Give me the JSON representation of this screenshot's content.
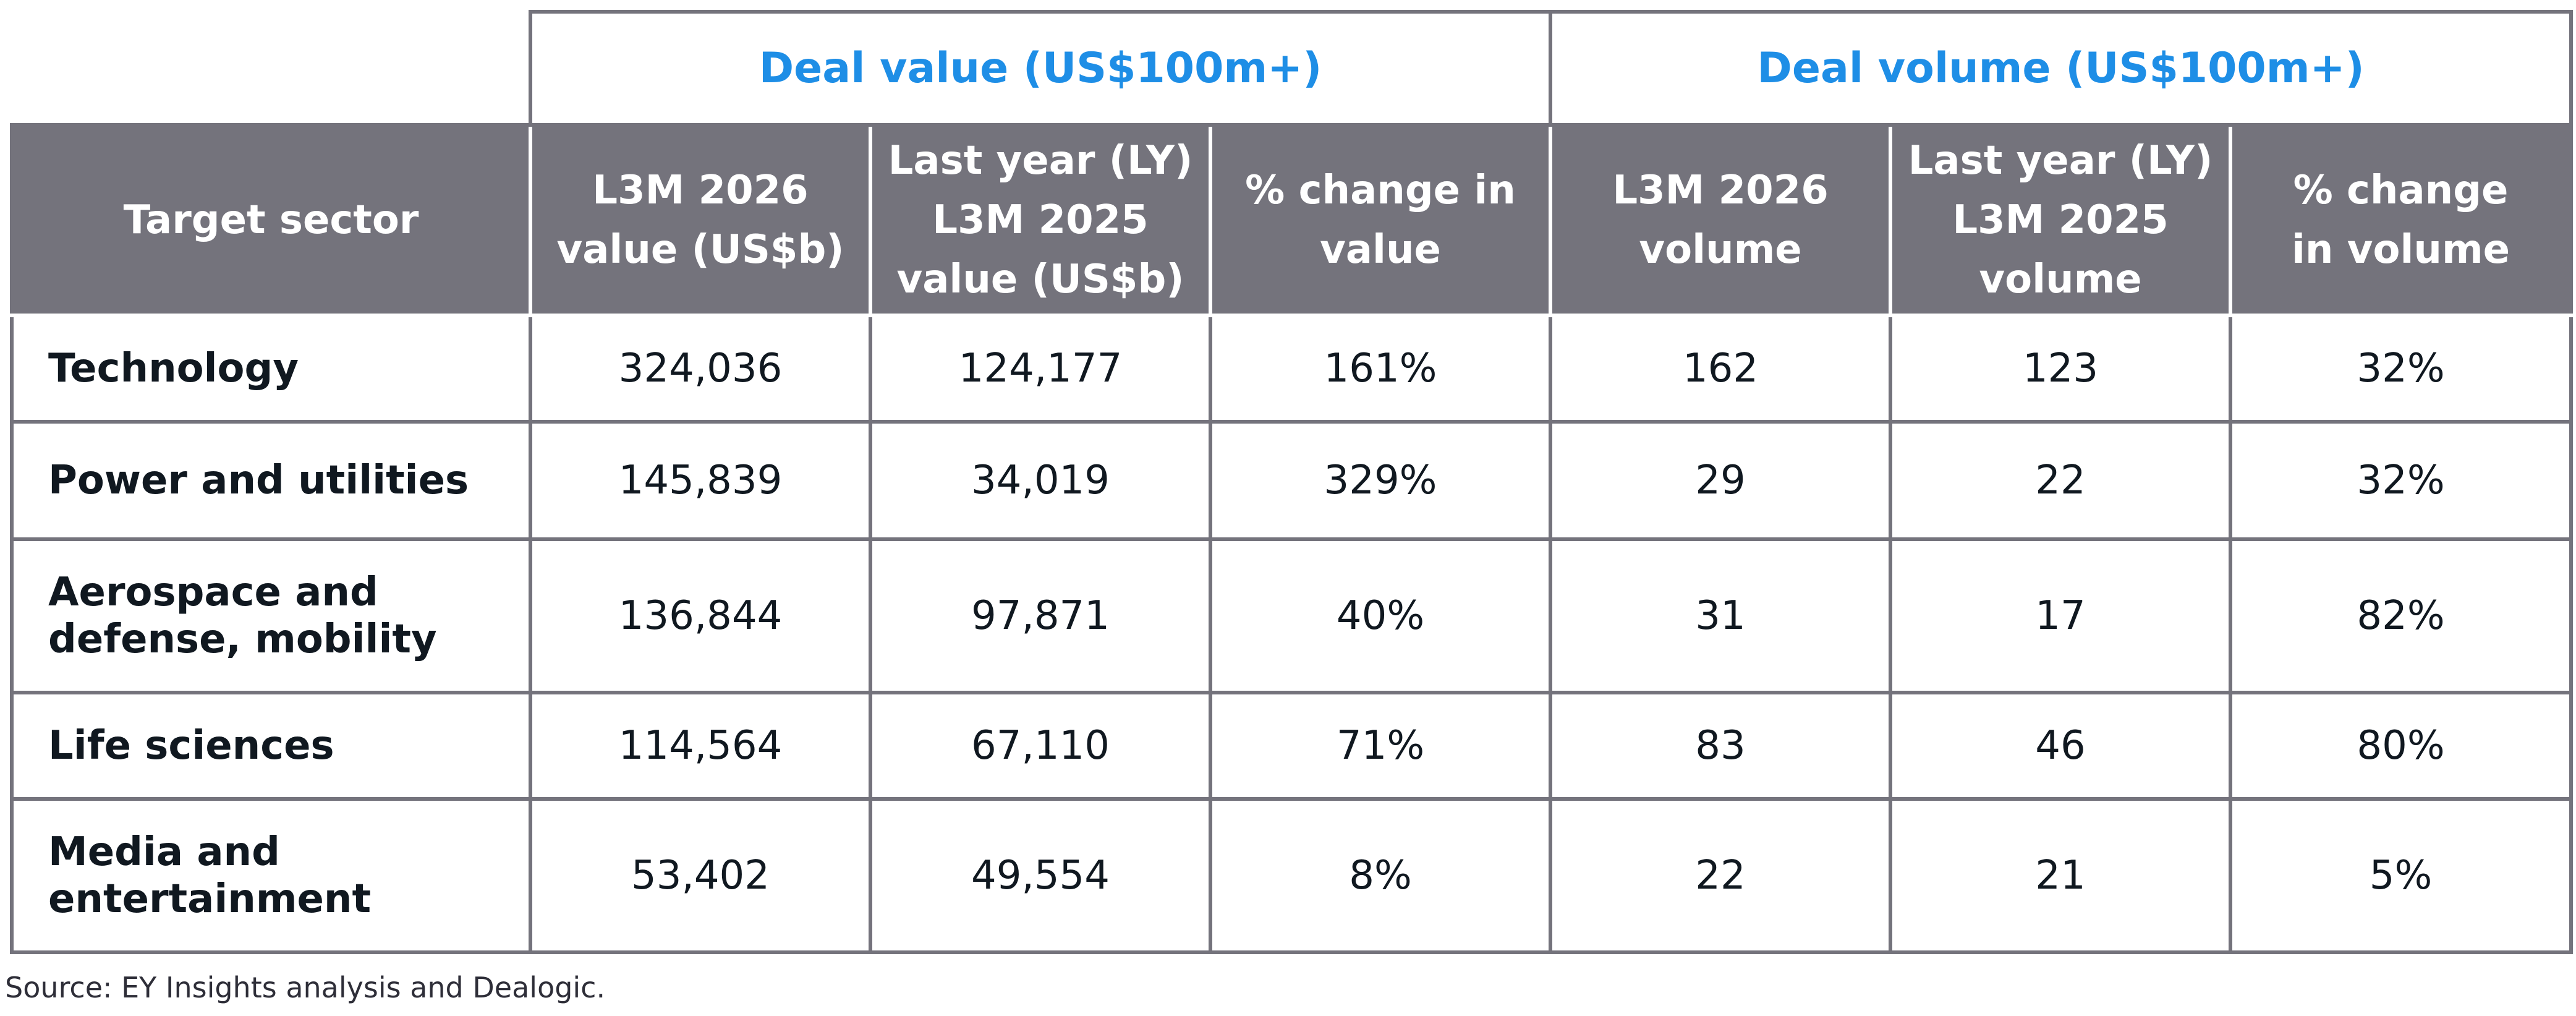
{
  "group_headers": {
    "deal_value": "Deal value (US$100m+)",
    "deal_volume": "Deal volume (US$100m+)"
  },
  "columns": [
    "Target sector",
    "L3M 2026\nvalue (US$b)",
    "Last year (LY)\nL3M 2025\nvalue (US$b)",
    "% change in\nvalue",
    "L3M 2026\nvolume",
    "Last year (LY)\nL3M 2025\nvolume",
    "% change\nin volume"
  ],
  "rows": [
    {
      "sector": "Technology",
      "value_2026": "324,036",
      "value_2025": "124,177",
      "value_change": "161%",
      "volume_2026": "162",
      "volume_2025": "123",
      "volume_change": "32%"
    },
    {
      "sector": "Power and utilities",
      "value_2026": "145,839",
      "value_2025": "34,019",
      "value_change": "329%",
      "volume_2026": "29",
      "volume_2025": "22",
      "volume_change": "32%"
    },
    {
      "sector": "Aerospace and\ndefense, mobility",
      "value_2026": "136,844",
      "value_2025": "97,871",
      "value_change": "40%",
      "volume_2026": "31",
      "volume_2025": "17",
      "volume_change": "82%"
    },
    {
      "sector": "Life sciences",
      "value_2026": "114,564",
      "value_2025": "67,110",
      "value_change": "71%",
      "volume_2026": "83",
      "volume_2025": "46",
      "volume_change": "80%"
    },
    {
      "sector": "Media and\nentertainment",
      "value_2026": "53,402",
      "value_2025": "49,554",
      "value_change": "8%",
      "volume_2026": "22",
      "volume_2025": "21",
      "volume_change": "5%"
    }
  ],
  "source": "Source: EY Insights analysis and Dealogic.",
  "colors": {
    "header_bg": "#74737c",
    "group_header_text": "#1e8ee6",
    "border": "#74737c",
    "body_text": "#101820"
  }
}
